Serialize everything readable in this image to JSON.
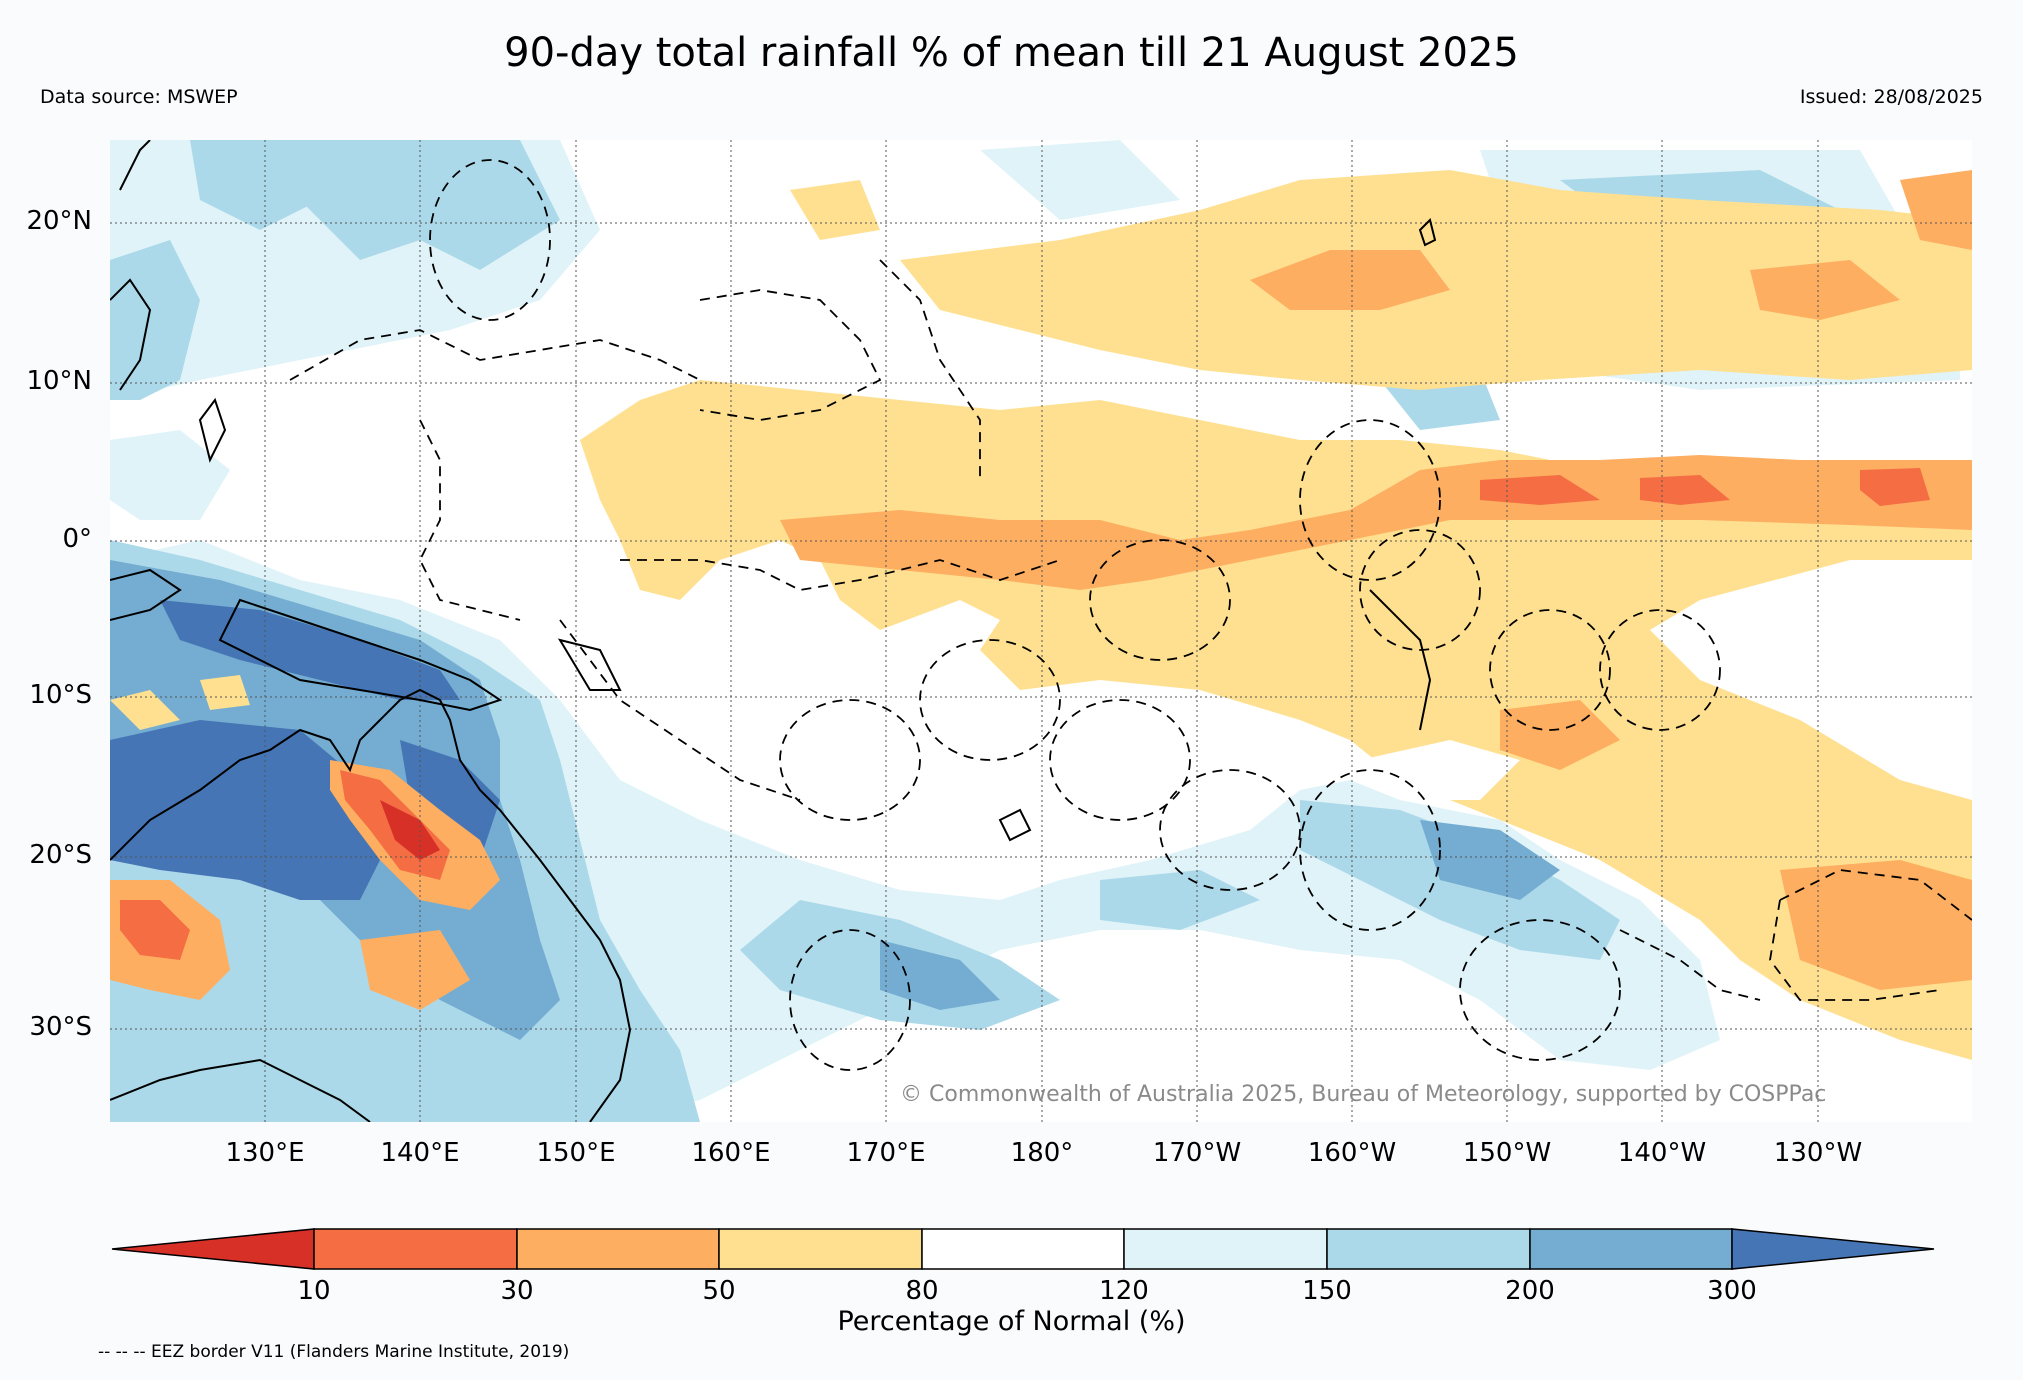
{
  "title": "90-day total rainfall % of mean till 21 August 2025",
  "data_source": "Data source: MSWEP",
  "issued": "Issued: 28/08/2025",
  "copyright": "© Commonwealth of Australia 2025, Bureau of Meteorology, supported by COSPPac",
  "lat_labels": [
    "20°N",
    "10°N",
    "0°",
    "10°S",
    "20°S",
    "30°S"
  ],
  "lon_labels": [
    "130°E",
    "140°E",
    "150°E",
    "160°E",
    "170°E",
    "180°",
    "170°W",
    "160°W",
    "150°W",
    "140°W",
    "130°W"
  ],
  "colorbar": {
    "title": "Percentage of Normal (%)",
    "ticks": [
      "10",
      "30",
      "50",
      "80",
      "120",
      "150",
      "200",
      "300"
    ],
    "colors": [
      "#d73027",
      "#f46d43",
      "#fdae61",
      "#fee090",
      "#ffffff",
      "#e0f3f8",
      "#abd9e9",
      "#74add1",
      "#4575b4"
    ]
  },
  "eez_note": "-- -- -- EEZ border V11 (Flanders Marine Institute, 2019)"
}
